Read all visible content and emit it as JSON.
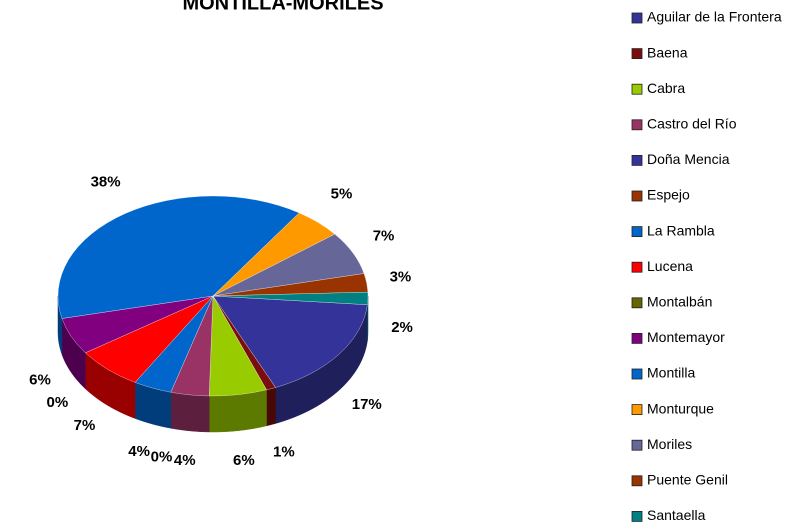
{
  "chart_data": {
    "type": "pie",
    "title": "MONTILLA-MORILES",
    "categories": [
      "Aguilar de la Frontera",
      "Baena",
      "Cabra",
      "Castro del Río",
      "Doña Mencia",
      "Espejo",
      "La Rambla",
      "Lucena",
      "Montalbán",
      "Montemayor",
      "Montilla",
      "Monturque",
      "Moriles",
      "Puente Genil",
      "Santaella"
    ],
    "values": [
      17,
      1,
      6,
      4,
      0,
      0,
      4,
      7,
      0,
      6,
      38,
      5,
      7,
      3,
      2
    ],
    "value_labels": [
      "17%",
      "1%",
      "6%",
      "4%",
      null,
      "0%",
      "4%",
      "7%",
      "0%",
      "6%",
      "38%",
      "5%",
      "7%",
      "3%",
      "2%"
    ],
    "colors": [
      "#333399",
      "#7a0d0d",
      "#99cc00",
      "#993366",
      "#333399",
      "#993300",
      "#0066cc",
      "#ff0000",
      "#666600",
      "#800080",
      "#0066cc",
      "#ff9900",
      "#666699",
      "#993300",
      "#008080"
    ],
    "legend": "right"
  }
}
